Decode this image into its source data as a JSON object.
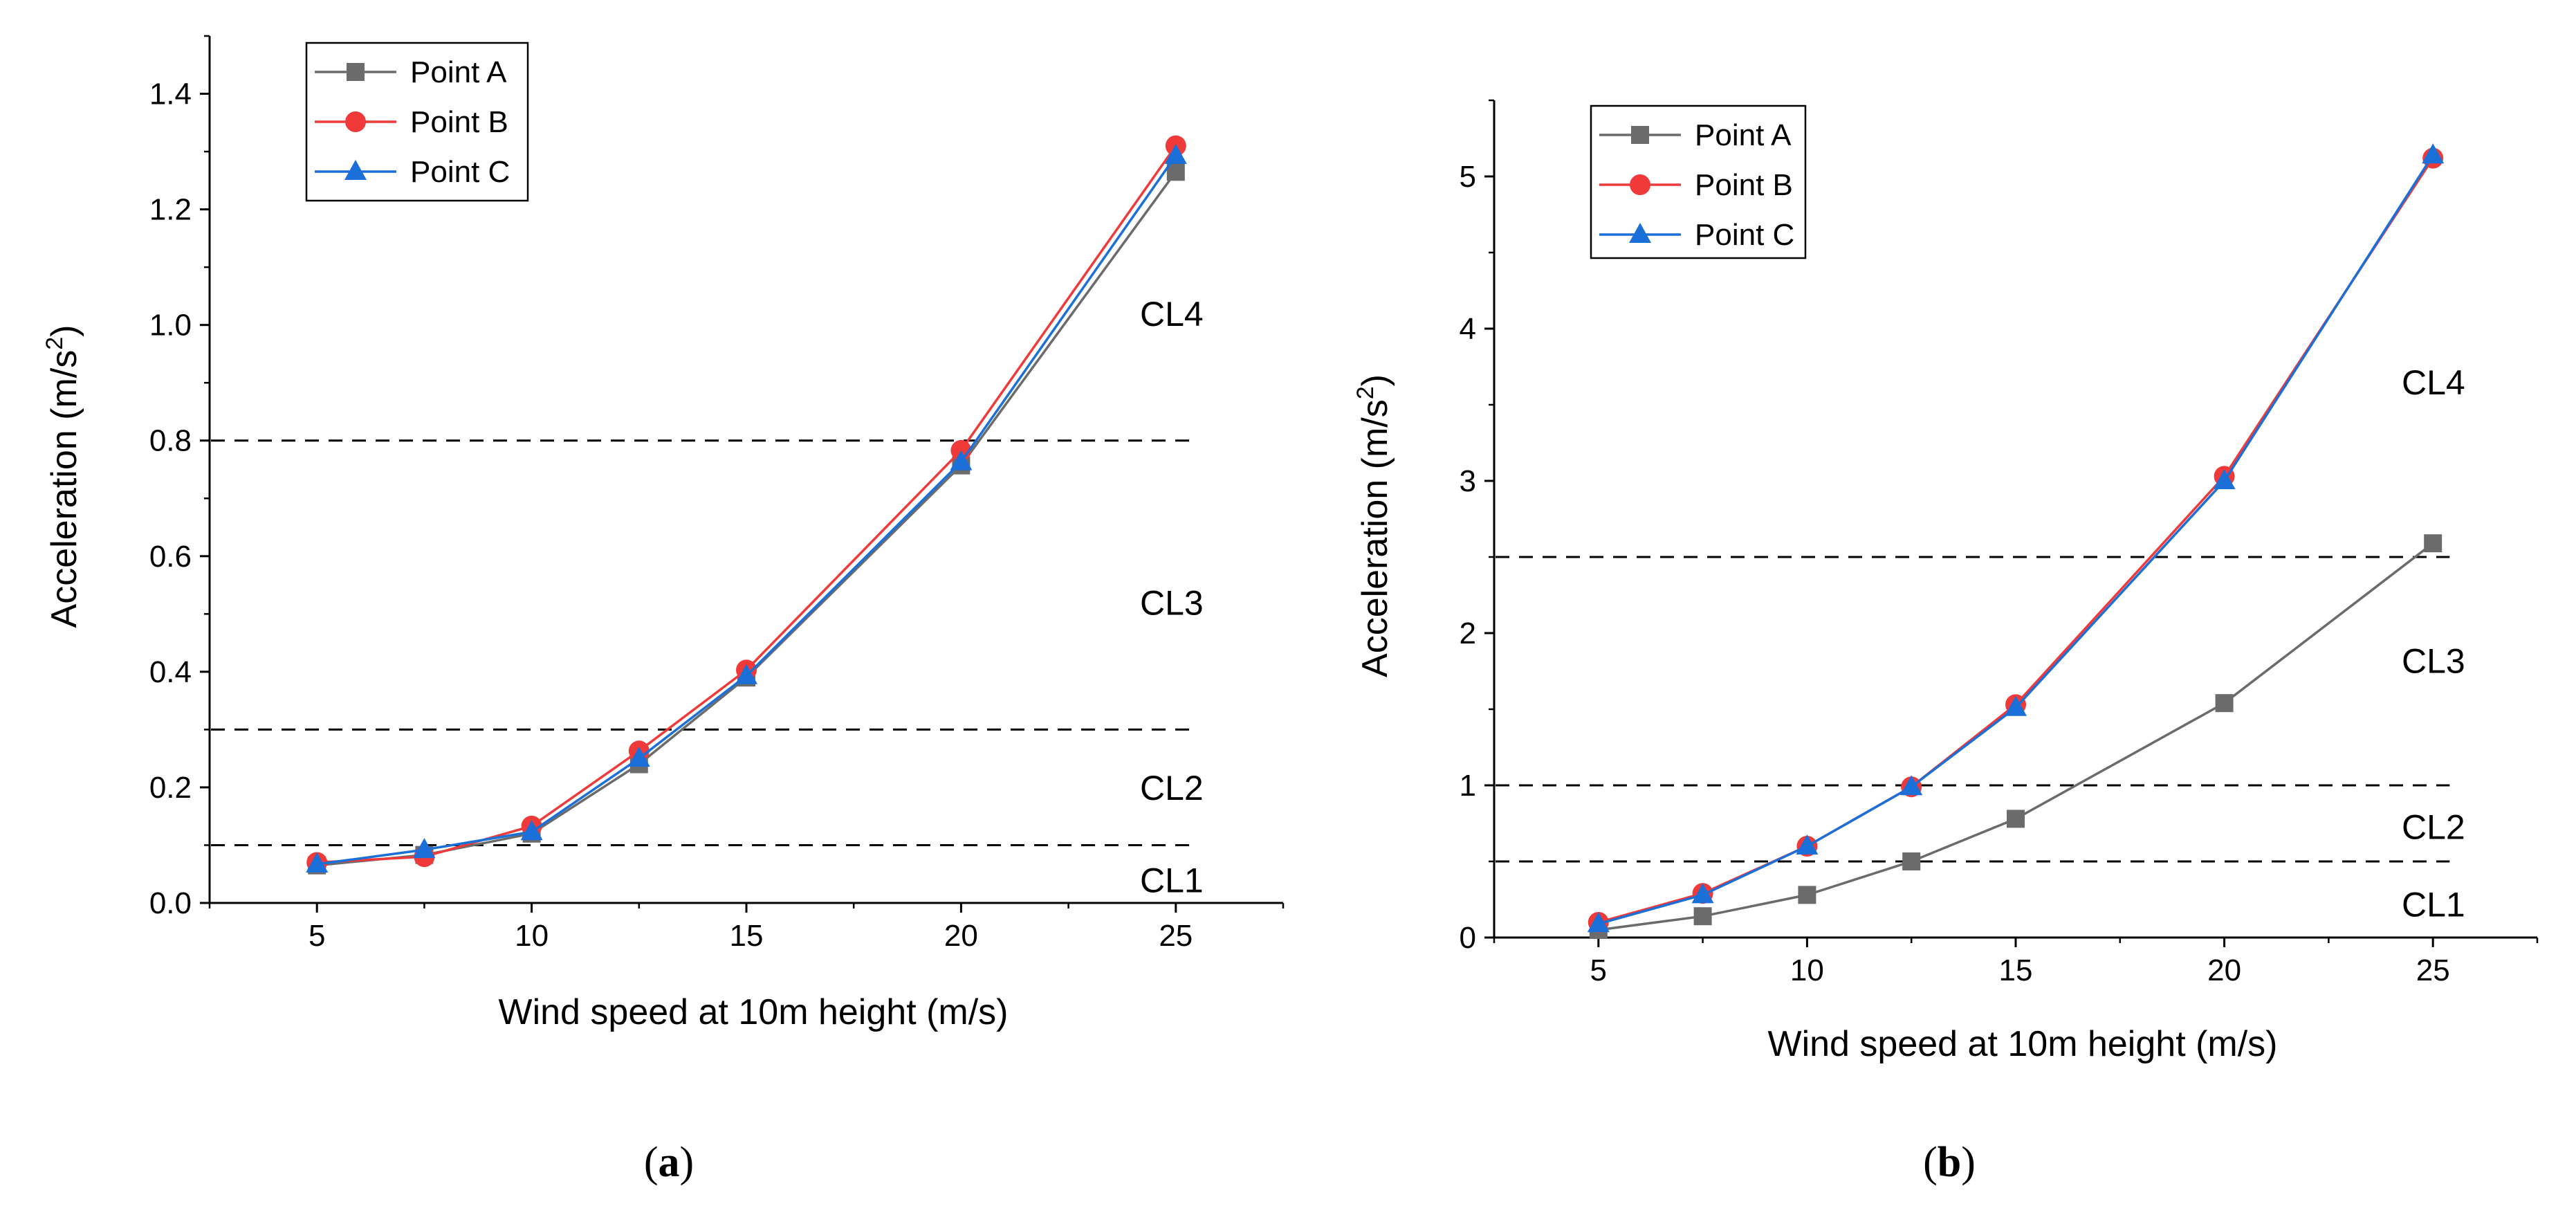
{
  "chart_data": [
    {
      "panel": "a",
      "caption_label": "a",
      "type": "line",
      "title": "",
      "xlabel": "Wind speed at 10m height (m/s)",
      "ylabel_main": "Acceleration (m/s",
      "ylabel_sup": "2",
      "ylabel_close": ")",
      "xlim": [
        2.5,
        27.5
      ],
      "ylim": [
        0,
        1.5
      ],
      "xticks": [
        5,
        10,
        15,
        20,
        25
      ],
      "yticks": [
        0,
        0.2,
        0.4,
        0.6,
        0.8,
        1.0,
        1.2,
        1.4
      ],
      "ytick_labels": [
        "0.0",
        "0.2",
        "0.4",
        "0.6",
        "0.8",
        "1.0",
        "1.2",
        "1.4"
      ],
      "x": [
        5,
        7.5,
        10,
        12.5,
        15,
        20,
        25
      ],
      "series": [
        {
          "name": "Point A",
          "color": "#6b6b6b",
          "marker": "square",
          "values": [
            0.065,
            0.083,
            0.12,
            0.24,
            0.39,
            0.757,
            1.265
          ]
        },
        {
          "name": "Point B",
          "color": "#f03a3a",
          "marker": "circle",
          "values": [
            0.07,
            0.08,
            0.133,
            0.263,
            0.403,
            0.783,
            1.31
          ]
        },
        {
          "name": "Point C",
          "color": "#1a6fd8",
          "marker": "triangle",
          "values": [
            0.067,
            0.092,
            0.123,
            0.25,
            0.393,
            0.763,
            1.293
          ]
        }
      ],
      "thresholds": [
        0.1,
        0.3,
        0.8
      ],
      "regions": [
        {
          "label": "CL1",
          "y": 0.04
        },
        {
          "label": "CL2",
          "y": 0.2
        },
        {
          "label": "CL3",
          "y": 0.52
        },
        {
          "label": "CL4",
          "y": 1.02
        }
      ],
      "legend_position": "top-left"
    },
    {
      "panel": "b",
      "caption_label": "b",
      "type": "line",
      "title": "",
      "xlabel": "Wind speed at 10m height (m/s)",
      "ylabel_main": "Acceleration (m/s",
      "ylabel_sup": "2",
      "ylabel_close": ")",
      "xlim": [
        2.5,
        27.5
      ],
      "ylim": [
        0,
        5.5
      ],
      "xticks": [
        5,
        10,
        15,
        20,
        25
      ],
      "yticks": [
        0,
        1,
        2,
        3,
        4,
        5
      ],
      "ytick_labels": [
        "0",
        "1",
        "2",
        "3",
        "4",
        "5"
      ],
      "x": [
        5,
        7.5,
        10,
        12.5,
        15,
        20,
        25
      ],
      "series": [
        {
          "name": "Point A",
          "color": "#6b6b6b",
          "marker": "square",
          "values": [
            0.05,
            0.14,
            0.28,
            0.5,
            0.78,
            1.54,
            2.59
          ]
        },
        {
          "name": "Point B",
          "color": "#f03a3a",
          "marker": "circle",
          "values": [
            0.1,
            0.29,
            0.6,
            0.99,
            1.53,
            3.03,
            5.12
          ]
        },
        {
          "name": "Point C",
          "color": "#1a6fd8",
          "marker": "triangle",
          "values": [
            0.09,
            0.28,
            0.6,
            0.99,
            1.51,
            3.0,
            5.14
          ]
        }
      ],
      "thresholds": [
        0.5,
        1.0,
        2.5
      ],
      "regions": [
        {
          "label": "CL1",
          "y": 0.22
        },
        {
          "label": "CL2",
          "y": 0.73
        },
        {
          "label": "CL3",
          "y": 1.82
        },
        {
          "label": "CL4",
          "y": 3.65
        }
      ],
      "legend_position": "top-left"
    }
  ]
}
